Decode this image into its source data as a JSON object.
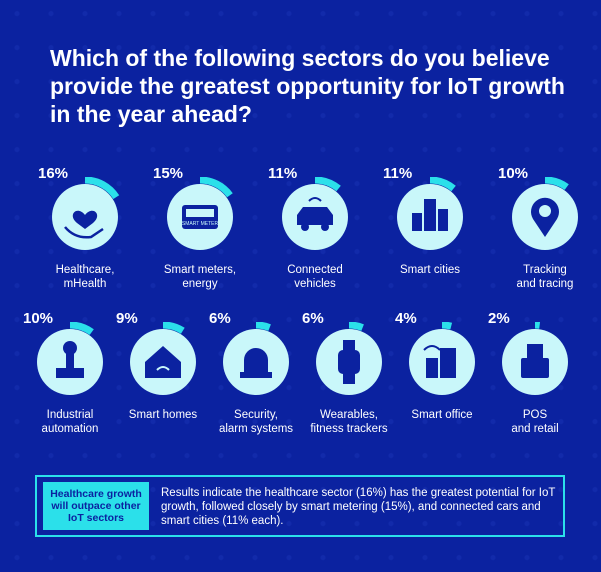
{
  "title": "Which of the following sectors do you believe provide the greatest opportunity for IoT growth in the year ahead?",
  "colors": {
    "background": "#0b22a0",
    "accent": "#2be0ea",
    "circle": "#c9f7fa",
    "icon": "#0b22a0"
  },
  "chart_data": {
    "type": "bar",
    "categories": [
      "Healthcare, mHealth",
      "Smart meters, energy",
      "Connected vehicles",
      "Smart cities",
      "Tracking and tracing",
      "Industrial automation",
      "Smart homes",
      "Security, alarm systems",
      "Wearables, fitness trackers",
      "Smart office",
      "POS and retail"
    ],
    "values": [
      16,
      15,
      11,
      11,
      10,
      10,
      9,
      6,
      6,
      4,
      2
    ],
    "value_labels": [
      "16%",
      "15%",
      "11%",
      "11%",
      "10%",
      "10%",
      "9%",
      "6%",
      "6%",
      "4%",
      "2%"
    ],
    "label_lines": [
      [
        "Healthcare,",
        "mHealth"
      ],
      [
        "Smart meters,",
        "energy"
      ],
      [
        "Connected",
        "vehicles"
      ],
      [
        "Smart cities",
        ""
      ],
      [
        "Tracking",
        "and tracing"
      ],
      [
        "Industrial",
        "automation"
      ],
      [
        "Smart homes",
        ""
      ],
      [
        "Security,",
        "alarm systems"
      ],
      [
        "Wearables,",
        "fitness trackers"
      ],
      [
        "Smart office",
        ""
      ],
      [
        "POS",
        "and retail"
      ]
    ],
    "icons": [
      "heart-hand-icon",
      "smart-meter-icon",
      "car-wifi-icon",
      "city-buildings-icon",
      "location-pin-icon",
      "robot-arm-icon",
      "smart-home-icon",
      "alarm-siren-icon",
      "smartwatch-icon",
      "office-wifi-icon",
      "pos-terminal-icon"
    ],
    "meter_text": "SMART METER"
  },
  "callout": {
    "tag": "Healthcare growth will outpace other IoT sectors",
    "text": "Results indicate the healthcare sector (16%) has the greatest potential for IoT growth, followed closely by smart metering (15%), and connected cars and smart cities (11% each)."
  }
}
